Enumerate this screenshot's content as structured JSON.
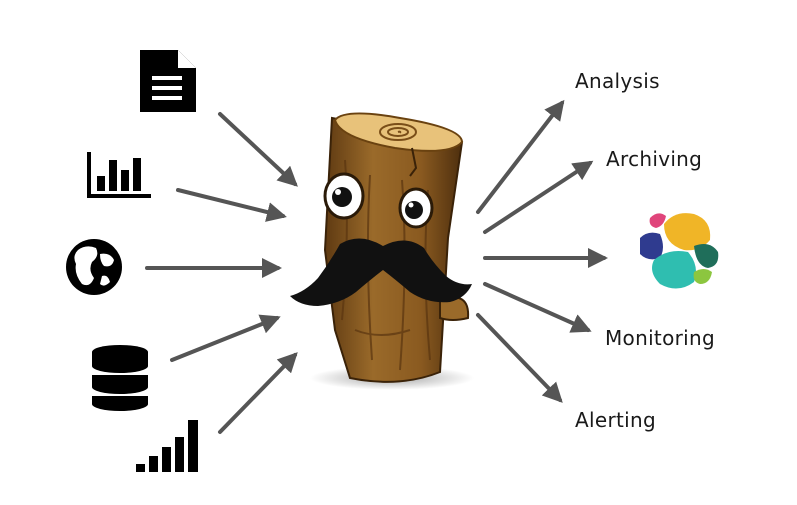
{
  "diagram": {
    "inputs": [
      {
        "icon": "document-icon"
      },
      {
        "icon": "bar-chart-icon"
      },
      {
        "icon": "globe-icon"
      },
      {
        "icon": "database-icon"
      },
      {
        "icon": "signal-bars-icon"
      }
    ],
    "center": {
      "icon": "mustache-log-mascot-icon"
    },
    "outputs": [
      {
        "label": "Analysis"
      },
      {
        "label": "Archiving"
      },
      {
        "icon": "elastic-logo-icon"
      },
      {
        "label": "Monitoring"
      },
      {
        "label": "Alerting"
      }
    ]
  },
  "colors": {
    "arrow": "#555555",
    "icon": "#000000",
    "wood": "#8a5a20",
    "wood_dark": "#5a3510",
    "mustache": "#111111",
    "elastic": [
      "#f0b527",
      "#2fbeb0",
      "#1f6e5a",
      "#2f3b8f",
      "#e0457b",
      "#8cc63f"
    ]
  }
}
